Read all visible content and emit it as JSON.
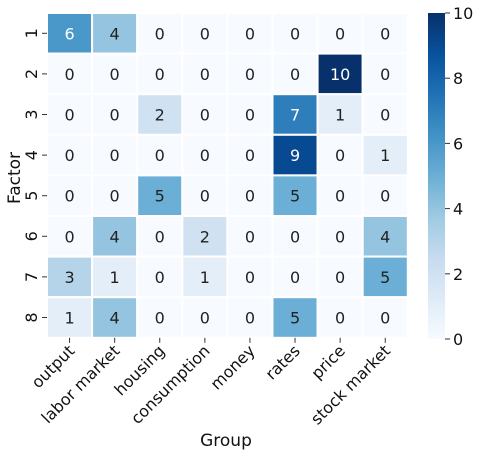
{
  "chart_data": {
    "type": "heatmap",
    "title": "",
    "xlabel": "Group",
    "ylabel": "Factor",
    "x_categories": [
      "output",
      "labor market",
      "housing",
      "consumption",
      "money",
      "rates",
      "price",
      "stock market"
    ],
    "y_categories": [
      "1",
      "2",
      "3",
      "4",
      "5",
      "6",
      "7",
      "8"
    ],
    "values": [
      [
        6,
        4,
        0,
        0,
        0,
        0,
        0,
        0
      ],
      [
        0,
        0,
        0,
        0,
        0,
        0,
        10,
        0
      ],
      [
        0,
        0,
        2,
        0,
        0,
        7,
        1,
        0
      ],
      [
        0,
        0,
        0,
        0,
        0,
        9,
        0,
        1
      ],
      [
        0,
        0,
        5,
        0,
        0,
        5,
        0,
        0
      ],
      [
        0,
        4,
        0,
        2,
        0,
        0,
        0,
        4
      ],
      [
        3,
        1,
        0,
        1,
        0,
        0,
        0,
        5
      ],
      [
        1,
        4,
        0,
        0,
        0,
        5,
        0,
        0
      ]
    ],
    "colorbar": {
      "range": [
        0,
        10
      ],
      "ticks": [
        0,
        2,
        4,
        6,
        8,
        10
      ],
      "colormap": "Blues"
    },
    "annotate": true,
    "grid_line_color": "#ffffff",
    "x_tick_rotation": 45,
    "y_tick_rotation": 90
  }
}
